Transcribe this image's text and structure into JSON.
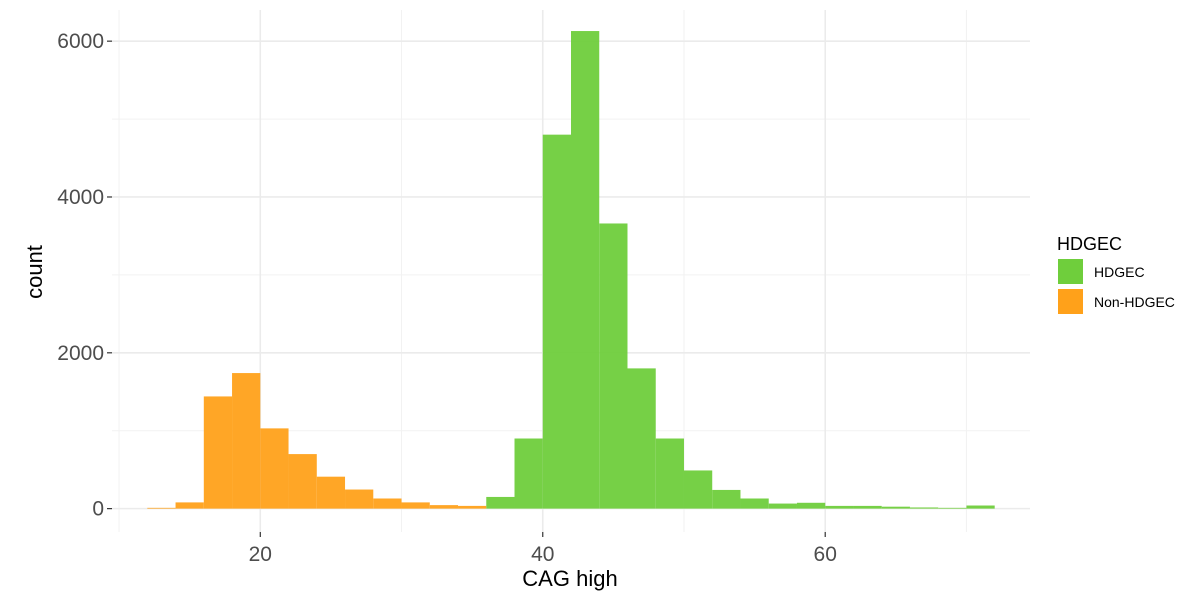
{
  "chart_data": {
    "type": "bar",
    "subtype": "histogram",
    "xlabel": "CAG high",
    "ylabel": "count",
    "xlim": [
      9.5,
      74.5
    ],
    "ylim": [
      -300,
      6400
    ],
    "x_ticks": [
      20,
      40,
      60
    ],
    "x_minor_ticks": [
      10,
      30,
      50,
      70
    ],
    "y_ticks": [
      0,
      2000,
      4000,
      6000
    ],
    "y_minor_ticks": [
      1000,
      3000,
      5000
    ],
    "grid": true,
    "bin_width": 2,
    "legend": {
      "title": "HDGEC",
      "position": "right"
    },
    "series": [
      {
        "name": "HDGEC",
        "color": "#6fce3c",
        "bins": [
          {
            "x0": 36,
            "x1": 38,
            "count": 150
          },
          {
            "x0": 38,
            "x1": 40,
            "count": 900
          },
          {
            "x0": 40,
            "x1": 42,
            "count": 4800
          },
          {
            "x0": 42,
            "x1": 44,
            "count": 6130
          },
          {
            "x0": 44,
            "x1": 46,
            "count": 3660
          },
          {
            "x0": 46,
            "x1": 48,
            "count": 1800
          },
          {
            "x0": 48,
            "x1": 50,
            "count": 900
          },
          {
            "x0": 50,
            "x1": 52,
            "count": 490
          },
          {
            "x0": 52,
            "x1": 54,
            "count": 240
          },
          {
            "x0": 54,
            "x1": 56,
            "count": 130
          },
          {
            "x0": 56,
            "x1": 58,
            "count": 65
          },
          {
            "x0": 58,
            "x1": 60,
            "count": 75
          },
          {
            "x0": 60,
            "x1": 62,
            "count": 35
          },
          {
            "x0": 62,
            "x1": 64,
            "count": 35
          },
          {
            "x0": 64,
            "x1": 66,
            "count": 25
          },
          {
            "x0": 66,
            "x1": 68,
            "count": 15
          },
          {
            "x0": 68,
            "x1": 70,
            "count": 10
          },
          {
            "x0": 70,
            "x1": 72,
            "count": 40
          }
        ]
      },
      {
        "name": "Non-HDGEC",
        "color": "#ffa11a",
        "bins": [
          {
            "x0": 12,
            "x1": 14,
            "count": 10
          },
          {
            "x0": 14,
            "x1": 16,
            "count": 80
          },
          {
            "x0": 16,
            "x1": 18,
            "count": 1440
          },
          {
            "x0": 18,
            "x1": 20,
            "count": 1740
          },
          {
            "x0": 20,
            "x1": 22,
            "count": 1030
          },
          {
            "x0": 22,
            "x1": 24,
            "count": 700
          },
          {
            "x0": 24,
            "x1": 26,
            "count": 410
          },
          {
            "x0": 26,
            "x1": 28,
            "count": 245
          },
          {
            "x0": 28,
            "x1": 30,
            "count": 130
          },
          {
            "x0": 30,
            "x1": 32,
            "count": 80
          },
          {
            "x0": 32,
            "x1": 34,
            "count": 45
          },
          {
            "x0": 34,
            "x1": 36,
            "count": 35
          }
        ]
      }
    ]
  }
}
